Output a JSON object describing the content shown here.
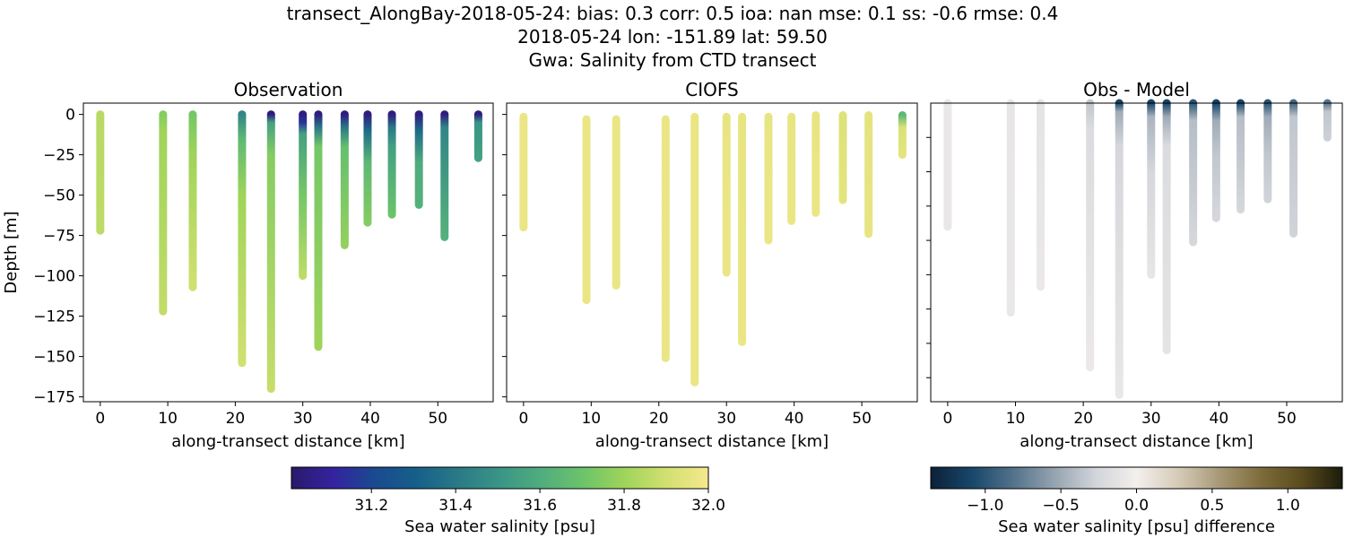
{
  "title_lines": [
    "transect_AlongBay-2018-05-24: bias: 0.3  corr: 0.5  ioa: nan  mse: 0.1  ss: -0.6  rmse: 0.4",
    "2018-05-24 lon: -151.89 lat: 59.50",
    "Gwa: Salinity from CTD transect"
  ],
  "chart_data": [
    {
      "type": "scatter",
      "title": "Observation",
      "xlabel": "along-transect distance [km]",
      "ylabel": "Depth [m]",
      "xlim": [
        -2.5,
        58.2
      ],
      "ylim": [
        -178,
        7
      ],
      "xticks": [
        0,
        10,
        20,
        30,
        40,
        50
      ],
      "yticks": [
        0,
        -25,
        -50,
        -75,
        -100,
        -125,
        -150,
        -175
      ],
      "colorbar": "salinity",
      "profiles": [
        {
          "x": 0,
          "stops": [
            [
              0,
              31.85
            ],
            [
              -72,
              31.86
            ]
          ]
        },
        {
          "x": 9.3,
          "stops": [
            [
              0,
              31.75
            ],
            [
              -10,
              31.8
            ],
            [
              -122,
              31.87
            ]
          ]
        },
        {
          "x": 13.7,
          "stops": [
            [
              0,
              31.72
            ],
            [
              -25,
              31.8
            ],
            [
              -107,
              31.9
            ]
          ]
        },
        {
          "x": 21.0,
          "stops": [
            [
              0,
              31.45
            ],
            [
              -15,
              31.65
            ],
            [
              -50,
              31.8
            ],
            [
              -154,
              31.9
            ]
          ]
        },
        {
          "x": 25.3,
          "stops": [
            [
              0,
              31.05
            ],
            [
              -5,
              31.55
            ],
            [
              -25,
              31.75
            ],
            [
              -170,
              31.88
            ]
          ]
        },
        {
          "x": 30.0,
          "stops": [
            [
              0,
              31.05
            ],
            [
              -5,
              31.15
            ],
            [
              -12,
              31.55
            ],
            [
              -50,
              31.72
            ],
            [
              -100,
              31.86
            ]
          ]
        },
        {
          "x": 32.3,
          "stops": [
            [
              0,
              31.05
            ],
            [
              -8,
              31.4
            ],
            [
              -20,
              31.72
            ],
            [
              -144,
              31.8
            ]
          ]
        },
        {
          "x": 36.2,
          "stops": [
            [
              0,
              31.05
            ],
            [
              -8,
              31.4
            ],
            [
              -20,
              31.68
            ],
            [
              -81,
              31.78
            ]
          ]
        },
        {
          "x": 39.6,
          "stops": [
            [
              0,
              31.05
            ],
            [
              -10,
              31.35
            ],
            [
              -30,
              31.65
            ],
            [
              -67,
              31.75
            ]
          ]
        },
        {
          "x": 43.2,
          "stops": [
            [
              0,
              31.05
            ],
            [
              -8,
              31.4
            ],
            [
              -20,
              31.55
            ],
            [
              -62,
              31.7
            ]
          ]
        },
        {
          "x": 47.2,
          "stops": [
            [
              0,
              31.05
            ],
            [
              -10,
              31.35
            ],
            [
              -30,
              31.6
            ],
            [
              -56,
              31.62
            ]
          ]
        },
        {
          "x": 51.0,
          "stops": [
            [
              0,
              31.05
            ],
            [
              -8,
              31.45
            ],
            [
              -76,
              31.62
            ]
          ]
        },
        {
          "x": 56.0,
          "stops": [
            [
              0,
              31.05
            ],
            [
              -5,
              31.5
            ],
            [
              -27,
              31.55
            ]
          ]
        }
      ]
    },
    {
      "type": "scatter",
      "title": "CIOFS",
      "xlabel": "along-transect distance [km]",
      "xlim": [
        -2.5,
        58.2
      ],
      "ylim": [
        -178,
        7
      ],
      "xticks": [
        0,
        10,
        20,
        30,
        40,
        50
      ],
      "yticks": [
        0,
        -25,
        -50,
        -75,
        -100,
        -125,
        -150,
        -175
      ],
      "colorbar": "salinity",
      "profiles": [
        {
          "x": 0,
          "stops": [
            [
              -1.5,
              31.97
            ],
            [
              -70,
              31.97
            ]
          ]
        },
        {
          "x": 9.3,
          "stops": [
            [
              -3,
              31.97
            ],
            [
              -115,
              31.97
            ]
          ]
        },
        {
          "x": 13.7,
          "stops": [
            [
              -3,
              31.97
            ],
            [
              -106,
              31.97
            ]
          ]
        },
        {
          "x": 21.0,
          "stops": [
            [
              -3,
              31.97
            ],
            [
              -151,
              31.97
            ]
          ]
        },
        {
          "x": 25.3,
          "stops": [
            [
              -1.5,
              31.97
            ],
            [
              -166,
              31.97
            ]
          ]
        },
        {
          "x": 30.0,
          "stops": [
            [
              -1.5,
              31.96
            ],
            [
              -98,
              31.97
            ]
          ]
        },
        {
          "x": 32.3,
          "stops": [
            [
              -1.5,
              31.96
            ],
            [
              -141,
              31.97
            ]
          ]
        },
        {
          "x": 36.2,
          "stops": [
            [
              -1.5,
              31.96
            ],
            [
              -78,
              31.97
            ]
          ]
        },
        {
          "x": 39.6,
          "stops": [
            [
              -1.5,
              31.96
            ],
            [
              -66,
              31.97
            ]
          ]
        },
        {
          "x": 43.2,
          "stops": [
            [
              -0.5,
              31.96
            ],
            [
              -61,
              31.97
            ]
          ]
        },
        {
          "x": 47.2,
          "stops": [
            [
              -0.5,
              31.93
            ],
            [
              -53,
              31.95
            ]
          ]
        },
        {
          "x": 51.0,
          "stops": [
            [
              -0.5,
              31.95
            ],
            [
              -74,
              31.96
            ]
          ]
        },
        {
          "x": 56.0,
          "stops": [
            [
              -0.5,
              31.65
            ],
            [
              -8,
              31.92
            ],
            [
              -25,
              31.95
            ]
          ]
        }
      ]
    },
    {
      "type": "scatter",
      "title": "Obs - Model",
      "xlabel": "along-transect distance [km]",
      "xlim": [
        -2.5,
        58.2
      ],
      "ylim": [
        -174,
        0
      ],
      "xticks": [
        0,
        10,
        20,
        30,
        40,
        50
      ],
      "yticks": [
        -20,
        -40,
        -60,
        -80,
        -100,
        -120,
        -140,
        -160
      ],
      "yticklabels_visible": false,
      "colorbar": "difference",
      "profiles": [
        {
          "x": 0,
          "stops": [
            [
              0,
              -0.08
            ],
            [
              -72,
              -0.08
            ]
          ]
        },
        {
          "x": 9.3,
          "stops": [
            [
              0,
              -0.1
            ],
            [
              -122,
              -0.08
            ]
          ]
        },
        {
          "x": 13.7,
          "stops": [
            [
              0,
              -0.12
            ],
            [
              -107,
              -0.07
            ]
          ]
        },
        {
          "x": 21.0,
          "stops": [
            [
              0,
              -0.35
            ],
            [
              -15,
              -0.2
            ],
            [
              -154,
              -0.07
            ]
          ]
        },
        {
          "x": 25.3,
          "stops": [
            [
              0,
              -1.1
            ],
            [
              -5,
              -0.5
            ],
            [
              -25,
              -0.25
            ],
            [
              -170,
              -0.08
            ]
          ]
        },
        {
          "x": 30.0,
          "stops": [
            [
              0,
              -1.1
            ],
            [
              -8,
              -0.45
            ],
            [
              -40,
              -0.25
            ],
            [
              -100,
              -0.1
            ]
          ]
        },
        {
          "x": 32.3,
          "stops": [
            [
              0,
              -1.1
            ],
            [
              -8,
              -0.5
            ],
            [
              -25,
              -0.2
            ],
            [
              -144,
              -0.12
            ]
          ]
        },
        {
          "x": 36.2,
          "stops": [
            [
              0,
              -1.0
            ],
            [
              -10,
              -0.4
            ],
            [
              -81,
              -0.25
            ]
          ]
        },
        {
          "x": 39.6,
          "stops": [
            [
              0,
              -1.1
            ],
            [
              -10,
              -0.5
            ],
            [
              -30,
              -0.35
            ],
            [
              -67,
              -0.25
            ]
          ]
        },
        {
          "x": 43.2,
          "stops": [
            [
              0,
              -1.1
            ],
            [
              -8,
              -0.4
            ],
            [
              -62,
              -0.25
            ]
          ]
        },
        {
          "x": 47.2,
          "stops": [
            [
              0,
              -1.0
            ],
            [
              -8,
              -0.5
            ],
            [
              -30,
              -0.35
            ],
            [
              -56,
              -0.28
            ]
          ]
        },
        {
          "x": 51.0,
          "stops": [
            [
              0,
              -0.9
            ],
            [
              -8,
              -0.35
            ],
            [
              -76,
              -0.28
            ]
          ]
        },
        {
          "x": 56.0,
          "stops": [
            [
              0,
              -0.8
            ],
            [
              -5,
              -0.35
            ],
            [
              -20,
              -0.3
            ]
          ]
        }
      ]
    }
  ],
  "colorbars": {
    "salinity": {
      "label": "Sea water salinity [psu]",
      "range": [
        31.01,
        32.0
      ],
      "ticks": [
        "31.2",
        "31.4",
        "31.6",
        "31.8",
        "32.0"
      ],
      "colors": [
        "#2a1a6a",
        "#3422a0",
        "#1a4a90",
        "#165f8a",
        "#2a7a86",
        "#3a9586",
        "#50ad7e",
        "#6cc46a",
        "#a0d45a",
        "#d2e070",
        "#f6e88e"
      ]
    },
    "difference": {
      "label": "Sea water salinity [psu] difference",
      "range": [
        -1.36,
        1.36
      ],
      "ticks": [
        "−1.0",
        "−0.5",
        "0.0",
        "0.5",
        "1.0"
      ],
      "colors": [
        "#0c2038",
        "#17476a",
        "#53728a",
        "#95a3b0",
        "#d2d5da",
        "#f3efec",
        "#d6cbb8",
        "#a89a78",
        "#7e6c3c",
        "#5a4c1e",
        "#1c1c0c"
      ]
    }
  }
}
